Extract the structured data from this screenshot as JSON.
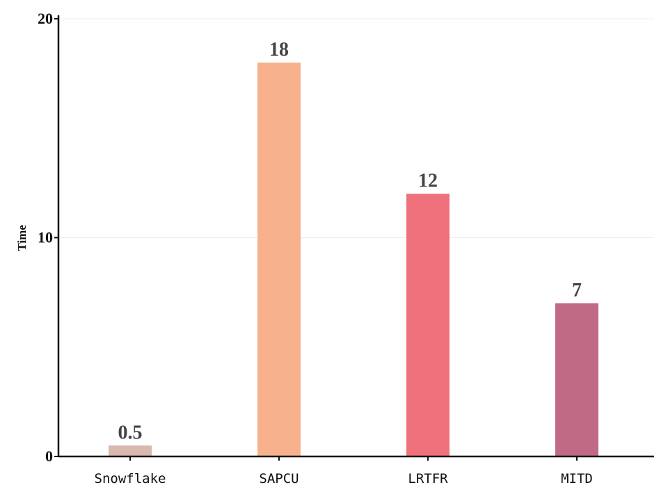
{
  "chart_data": {
    "type": "bar",
    "title": "",
    "xlabel": "",
    "ylabel": "Time",
    "categories": [
      "Snowflake",
      "SAPCU",
      "LRTFR",
      "MITD"
    ],
    "values": [
      0.5,
      18,
      12,
      7
    ],
    "value_labels": [
      "0.5",
      "18",
      "12",
      "7"
    ],
    "colors": [
      "#d9b8ae",
      "#f7b28d",
      "#ef717b",
      "#c06a85"
    ],
    "ylim": [
      0,
      20
    ],
    "yticks": [
      0,
      10,
      20
    ],
    "grid": true,
    "legend": "none"
  }
}
